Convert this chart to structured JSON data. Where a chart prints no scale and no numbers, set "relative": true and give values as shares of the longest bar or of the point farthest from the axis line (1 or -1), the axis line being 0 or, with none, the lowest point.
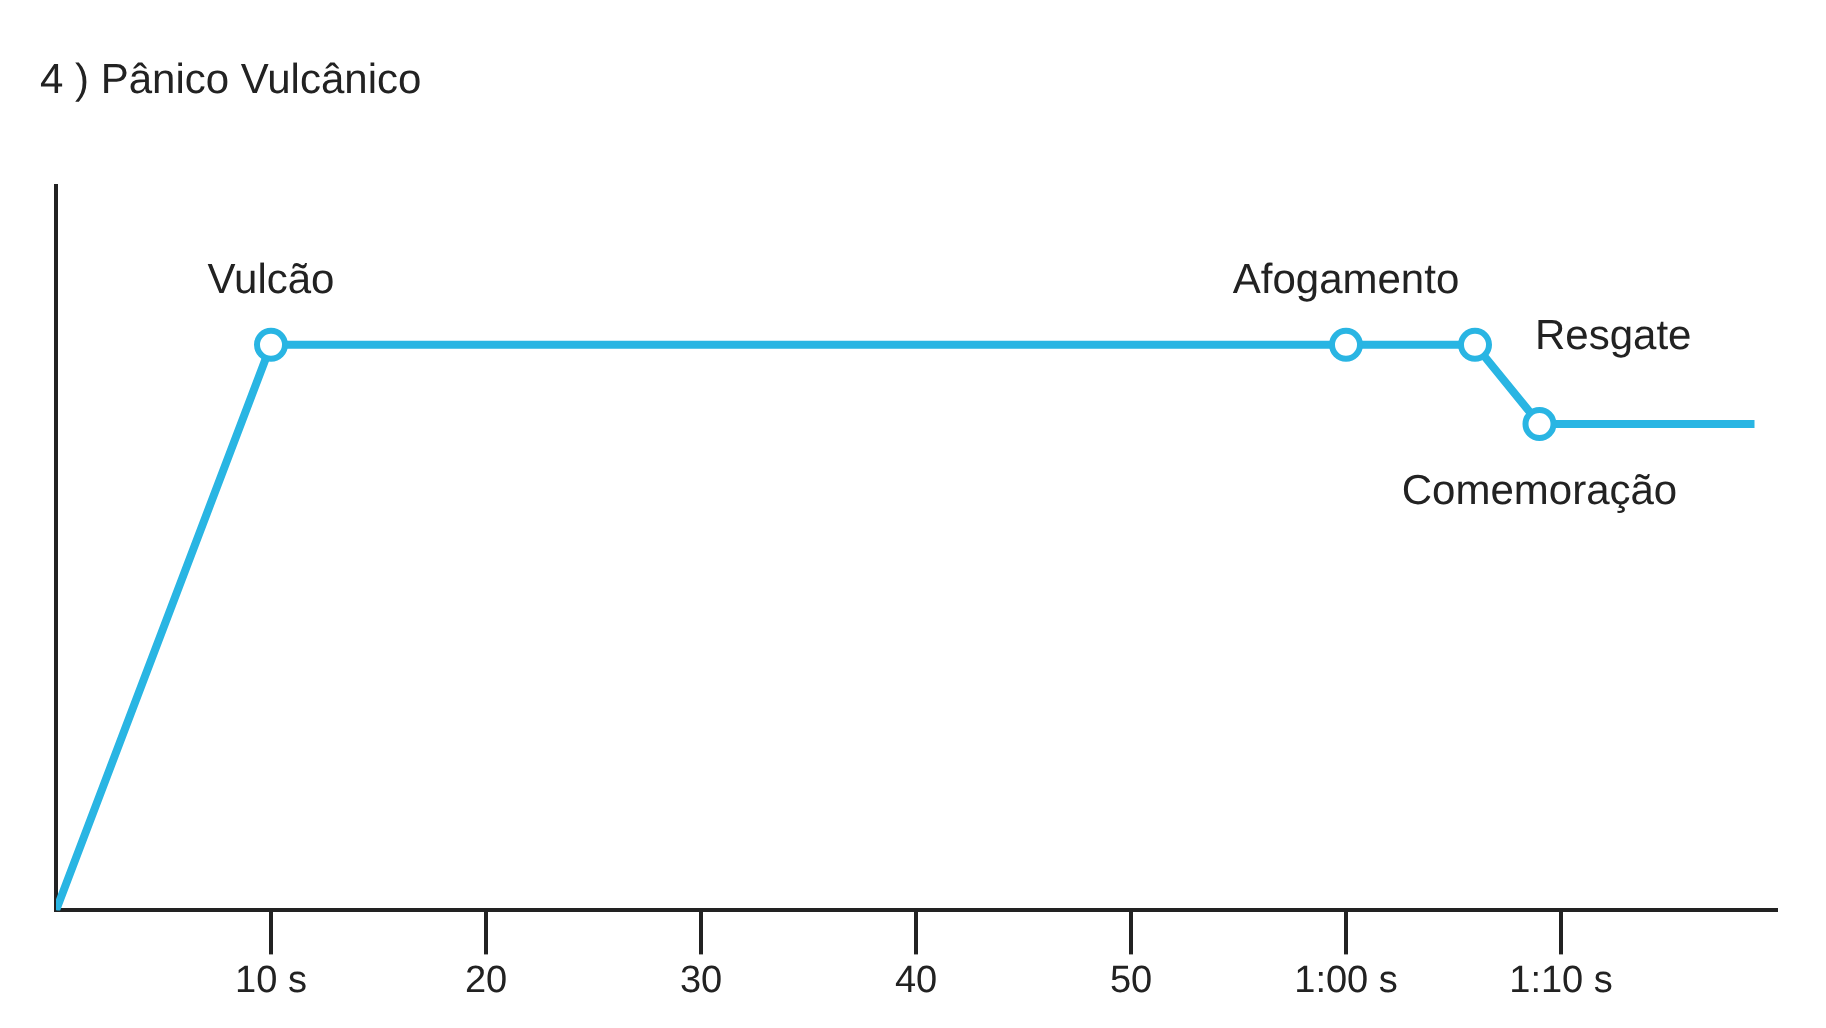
{
  "chart_data": {
    "type": "line",
    "title": "4 ) Pânico Vulcânico",
    "relative": true,
    "x": [
      0,
      10,
      60,
      66,
      69,
      79
    ],
    "series": [
      {
        "color": "#29b5e3",
        "values": [
          0,
          1,
          1,
          1,
          0.86,
          0.86
        ]
      }
    ],
    "xlim": [
      0,
      80
    ],
    "xticks": [
      {
        "value": 10,
        "label": "10 s"
      },
      20,
      30,
      40,
      50,
      {
        "value": 60,
        "label": "1:00 s"
      },
      {
        "value": 70,
        "label": "1:10 s"
      }
    ],
    "grid": false,
    "legend": false,
    "marker": "circle",
    "line_style": "solid",
    "annotations": [
      {
        "text": "Vulcão",
        "x": 10,
        "y": 1
      },
      {
        "text": "Afogamento",
        "x": 60,
        "y": 1
      },
      {
        "text": "Resgate",
        "x": 66,
        "y": 1
      },
      {
        "text": "Comemoração",
        "x": 69,
        "y": 0.86
      }
    ]
  }
}
